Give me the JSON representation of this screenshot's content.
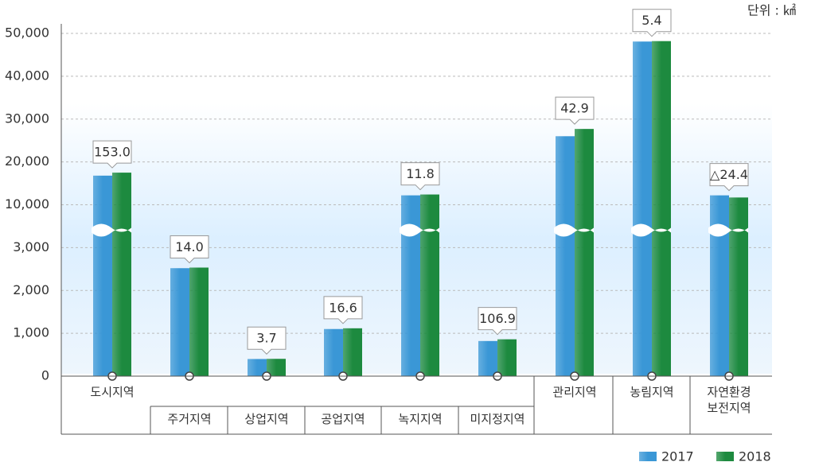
{
  "chart_data": {
    "type": "bar",
    "unit_label": "단위 : ㎢",
    "categories": [
      "도시지역",
      "주거지역",
      "상업지역",
      "공업지역",
      "녹지지역",
      "미지정지역",
      "관리지역",
      "농림지역",
      "자연환경\n보전지역"
    ],
    "series": [
      {
        "name": "2017",
        "color": "#3a97d6",
        "values": [
          16800,
          2520,
          400,
          1100,
          12200,
          820,
          26000,
          48100,
          12200
        ]
      },
      {
        "name": "2018",
        "color": "#1d8a3f",
        "values": [
          17500,
          2534,
          404,
          1117,
          12400,
          860,
          27700,
          48200,
          11700
        ]
      }
    ],
    "annotations": [
      "153.0",
      "14.0",
      "3.7",
      "16.6",
      "11.8",
      "106.9",
      "42.9",
      "5.4",
      "△24.4"
    ],
    "ylim": [
      0,
      50000
    ],
    "yticks": [
      0,
      {
        "value": 1000,
        "label": "1,000"
      },
      {
        "value": 2000,
        "label": "2,000"
      },
      {
        "value": 3000,
        "label": "3,000"
      },
      {
        "value": 10000,
        "label": "10,000"
      },
      {
        "value": 20000,
        "label": "20,000"
      },
      {
        "value": 30000,
        "label": "30,000"
      },
      {
        "value": 40000,
        "label": "40,000"
      },
      {
        "value": 50000,
        "label": "50,000"
      }
    ],
    "grid": true
  }
}
